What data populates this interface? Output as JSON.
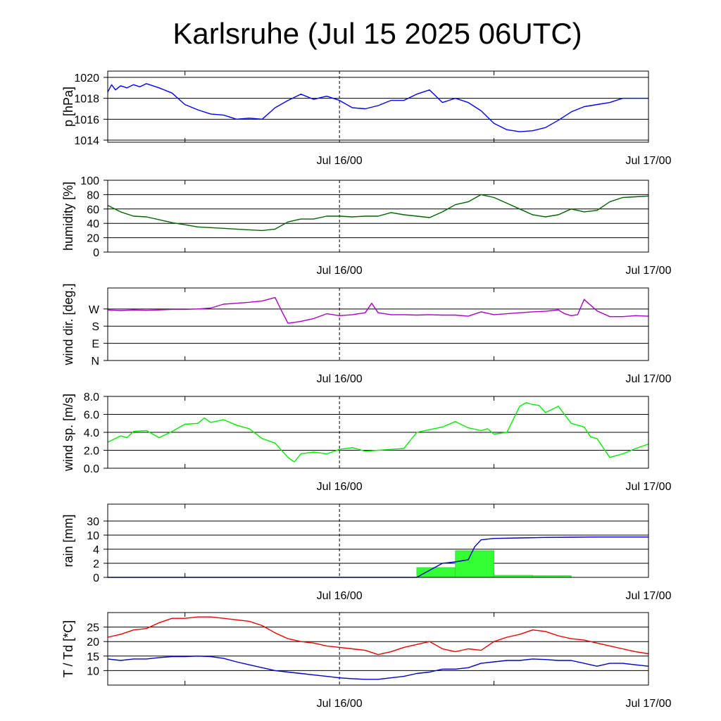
{
  "title": "Karlsruhe (Jul 15 2025 06UTC)",
  "x_tick_labels": [
    "Jul 16/00",
    "Jul 17/00"
  ],
  "colors": {
    "pressure": "#0000ff",
    "humidity": "#006400",
    "wind_dir": "#aa00cc",
    "wind_speed": "#00ee00",
    "rain_bars": "#33ff33",
    "rain_accum": "#0000cc",
    "temperature": "#ee0000",
    "dewpoint": "#0000cc"
  },
  "chart_data": [
    {
      "type": "line",
      "ylabel": "p [hPa]",
      "x_unit": "hours since Jul 15 06UTC",
      "xlim": [
        0,
        42
      ],
      "ylim": [
        1013.8,
        1020.6
      ],
      "y_ticks": [
        {
          "v": 1014,
          "label": "1014"
        },
        {
          "v": 1016,
          "label": "1016"
        },
        {
          "v": 1018,
          "label": "1018"
        },
        {
          "v": 1020,
          "label": "1020"
        }
      ],
      "series": [
        {
          "x": [
            0,
            0.3,
            0.6,
            1,
            1.5,
            2,
            2.5,
            3,
            4,
            5,
            6,
            7,
            8,
            9,
            10,
            11,
            12,
            13,
            14,
            15,
            16,
            17,
            18,
            19,
            20,
            21,
            22,
            23,
            24,
            25,
            26,
            27,
            28,
            29,
            30,
            31,
            32,
            33,
            34,
            35,
            36,
            37,
            38,
            39,
            40,
            41,
            42
          ],
          "y": [
            1018.6,
            1019.3,
            1018.8,
            1019.2,
            1019.0,
            1019.3,
            1019.1,
            1019.4,
            1019.0,
            1018.5,
            1017.4,
            1016.9,
            1016.5,
            1016.4,
            1016.0,
            1016.1,
            1016.0,
            1017.1,
            1017.8,
            1018.4,
            1017.9,
            1018.2,
            1017.8,
            1017.1,
            1017.0,
            1017.3,
            1017.8,
            1017.8,
            1018.4,
            1018.8,
            1017.6,
            1018.0,
            1017.6,
            1016.8,
            1015.6,
            1015.0,
            1014.8,
            1014.9,
            1015.2,
            1015.9,
            1016.7,
            1017.2,
            1017.4,
            1017.6,
            1018.0,
            1018.0,
            1018.0
          ]
        }
      ]
    },
    {
      "type": "line",
      "ylabel": "humidity [%]",
      "x_unit": "hours since Jul 15 06UTC",
      "xlim": [
        0,
        42
      ],
      "ylim": [
        0,
        100
      ],
      "y_ticks": [
        {
          "v": 0,
          "label": "0"
        },
        {
          "v": 20,
          "label": "20"
        },
        {
          "v": 40,
          "label": "40"
        },
        {
          "v": 60,
          "label": "60"
        },
        {
          "v": 80,
          "label": "80"
        },
        {
          "v": 100,
          "label": "100"
        }
      ],
      "series": [
        {
          "x": [
            0,
            1,
            2,
            3,
            4,
            5,
            6,
            7,
            8,
            9,
            10,
            11,
            12,
            13,
            14,
            15,
            16,
            17,
            18,
            19,
            20,
            21,
            22,
            23,
            24,
            25,
            26,
            27,
            28,
            29,
            30,
            31,
            32,
            33,
            34,
            35,
            36,
            37,
            38,
            39,
            40,
            41,
            42
          ],
          "y": [
            65,
            56,
            50,
            49,
            45,
            41,
            38,
            35,
            34,
            33,
            32,
            31,
            30,
            32,
            42,
            46,
            46,
            50,
            50,
            49,
            50,
            50,
            55,
            52,
            50,
            48,
            56,
            66,
            70,
            80,
            76,
            68,
            60,
            52,
            49,
            52,
            60,
            56,
            58,
            70,
            76,
            77,
            78
          ]
        }
      ]
    },
    {
      "type": "line",
      "ylabel": "wind dir. [deg.]",
      "x_unit": "hours since Jul 15 06UTC",
      "xlim": [
        0,
        42
      ],
      "ylim": [
        0,
        380
      ],
      "y_ticks": [
        {
          "v": 0,
          "label": "N"
        },
        {
          "v": 90,
          "label": "E"
        },
        {
          "v": 180,
          "label": "S"
        },
        {
          "v": 270,
          "label": "W"
        }
      ],
      "series": [
        {
          "x": [
            0,
            1,
            2,
            3,
            4,
            5,
            6,
            7,
            8,
            9,
            10,
            11,
            12,
            13,
            13.5,
            14,
            14.5,
            15,
            16,
            17,
            18,
            19,
            20,
            20.5,
            21,
            22,
            23,
            24,
            25,
            26,
            27,
            28,
            29,
            30,
            31,
            32,
            33,
            34,
            35,
            35.5,
            36,
            36.5,
            37,
            38,
            39,
            40,
            41,
            42
          ],
          "y": [
            265,
            262,
            265,
            263,
            265,
            268,
            268,
            270,
            275,
            295,
            300,
            305,
            312,
            330,
            260,
            195,
            200,
            205,
            220,
            245,
            235,
            240,
            250,
            300,
            250,
            240,
            240,
            238,
            240,
            238,
            238,
            232,
            255,
            240,
            245,
            250,
            255,
            258,
            265,
            245,
            235,
            240,
            320,
            260,
            230,
            230,
            235,
            232
          ]
        }
      ]
    },
    {
      "type": "line",
      "ylabel": "wind sp. [m/s]",
      "x_unit": "hours since Jul 15 06UTC",
      "xlim": [
        0,
        42
      ],
      "ylim": [
        0,
        8
      ],
      "y_ticks": [
        {
          "v": 0,
          "label": "0.0"
        },
        {
          "v": 2,
          "label": "2.0"
        },
        {
          "v": 4,
          "label": "4.0"
        },
        {
          "v": 6,
          "label": "6.0"
        },
        {
          "v": 8,
          "label": "8.0"
        }
      ],
      "series": [
        {
          "x": [
            0,
            1,
            1.5,
            2,
            3,
            4,
            5,
            6,
            7,
            7.5,
            8,
            9,
            10,
            11,
            12,
            13,
            14,
            14.5,
            15,
            16,
            17,
            18,
            19,
            20,
            21,
            22,
            23,
            24,
            25,
            26,
            27,
            28,
            29,
            29.5,
            30,
            31,
            32,
            32.5,
            33,
            33.5,
            34,
            35,
            36,
            37,
            37.5,
            38,
            39,
            40,
            41,
            42
          ],
          "y": [
            2.9,
            3.6,
            3.4,
            4.1,
            4.2,
            3.4,
            4.1,
            4.9,
            5.0,
            5.6,
            5.1,
            5.4,
            4.8,
            4.4,
            3.3,
            2.8,
            1.2,
            0.7,
            1.6,
            1.8,
            1.6,
            2.1,
            2.3,
            1.9,
            2.0,
            2.1,
            2.2,
            4.0,
            4.3,
            4.6,
            5.2,
            4.5,
            4.2,
            4.4,
            3.8,
            4.0,
            6.9,
            7.3,
            7.1,
            7.0,
            6.2,
            6.9,
            5.0,
            4.6,
            3.5,
            3.3,
            1.2,
            1.6,
            2.2,
            2.7
          ]
        }
      ]
    },
    {
      "type": "bar",
      "ylabel": "rain [mm]",
      "x_unit": "hours since Jul 15 06UTC",
      "xlim": [
        0,
        42
      ],
      "y_ticks": [
        {
          "v": 0,
          "label": "0"
        },
        {
          "v": 2,
          "label": "2"
        },
        {
          "v": 4,
          "label": "4"
        },
        {
          "v": 10,
          "label": "10"
        },
        {
          "v": 30,
          "label": "30"
        }
      ],
      "y_scale": "nonlinear (0, 2, 4, 10, 30 equally spaced)",
      "bars": [
        {
          "x_start": 24,
          "x_end": 27,
          "value": 1.4
        },
        {
          "x_start": 27,
          "x_end": 30,
          "value": 3.8
        },
        {
          "x_start": 30,
          "x_end": 33,
          "value": 0.3
        },
        {
          "x_start": 33,
          "x_end": 36,
          "value": 0.25
        }
      ],
      "accumulated": {
        "x": [
          0,
          24,
          25,
          26,
          27,
          28,
          28.5,
          29,
          30,
          32,
          34,
          36,
          38,
          40,
          42
        ],
        "y": [
          0,
          0,
          1.0,
          2.0,
          2.2,
          2.5,
          5.0,
          8.0,
          8.6,
          8.8,
          9.0,
          9.1,
          9.2,
          9.2,
          9.2
        ]
      }
    },
    {
      "type": "line",
      "ylabel": "T / Td [*C]",
      "x_unit": "hours since Jul 15 06UTC",
      "xlim": [
        0,
        42
      ],
      "ylim": [
        5,
        30
      ],
      "y_ticks": [
        {
          "v": 10,
          "label": "10"
        },
        {
          "v": 15,
          "label": "15"
        },
        {
          "v": 20,
          "label": "20"
        },
        {
          "v": 25,
          "label": "25"
        }
      ],
      "series": [
        {
          "name": "T",
          "x": [
            0,
            1,
            2,
            3,
            4,
            5,
            6,
            7,
            8,
            9,
            10,
            11,
            12,
            13,
            14,
            15,
            16,
            17,
            18,
            19,
            20,
            21,
            22,
            23,
            24,
            25,
            26,
            27,
            28,
            29,
            30,
            31,
            32,
            33,
            34,
            35,
            36,
            37,
            38,
            39,
            40,
            41,
            42
          ],
          "y": [
            21.5,
            22.5,
            24.0,
            24.5,
            26.5,
            28.0,
            28.0,
            28.5,
            28.5,
            28.0,
            27.5,
            27.0,
            25.5,
            23.0,
            21.0,
            20.0,
            19.5,
            18.5,
            18.0,
            17.5,
            17.0,
            15.5,
            16.5,
            18.0,
            19.0,
            20.0,
            17.5,
            16.5,
            17.5,
            17.0,
            20.0,
            21.5,
            22.5,
            24.0,
            23.5,
            22.0,
            21.0,
            20.5,
            19.5,
            18.5,
            17.5,
            16.5,
            15.8
          ]
        },
        {
          "name": "Td",
          "x": [
            0,
            1,
            2,
            3,
            4,
            5,
            6,
            7,
            8,
            9,
            10,
            11,
            12,
            13,
            14,
            15,
            16,
            17,
            18,
            19,
            20,
            21,
            22,
            23,
            24,
            25,
            26,
            27,
            28,
            29,
            30,
            31,
            32,
            33,
            34,
            35,
            36,
            37,
            38,
            39,
            40,
            41,
            42
          ],
          "y": [
            14.0,
            13.5,
            14.0,
            14.0,
            14.5,
            14.8,
            14.8,
            15.0,
            14.8,
            14.2,
            13.0,
            12.0,
            11.0,
            10.0,
            9.5,
            9.0,
            8.5,
            8.0,
            7.5,
            7.2,
            7.0,
            7.0,
            7.5,
            8.0,
            9.0,
            9.5,
            10.5,
            10.5,
            11.0,
            12.5,
            13.0,
            13.5,
            13.5,
            14.0,
            13.8,
            13.5,
            13.5,
            12.5,
            11.5,
            12.5,
            12.5,
            12.0,
            11.5
          ]
        }
      ]
    }
  ]
}
